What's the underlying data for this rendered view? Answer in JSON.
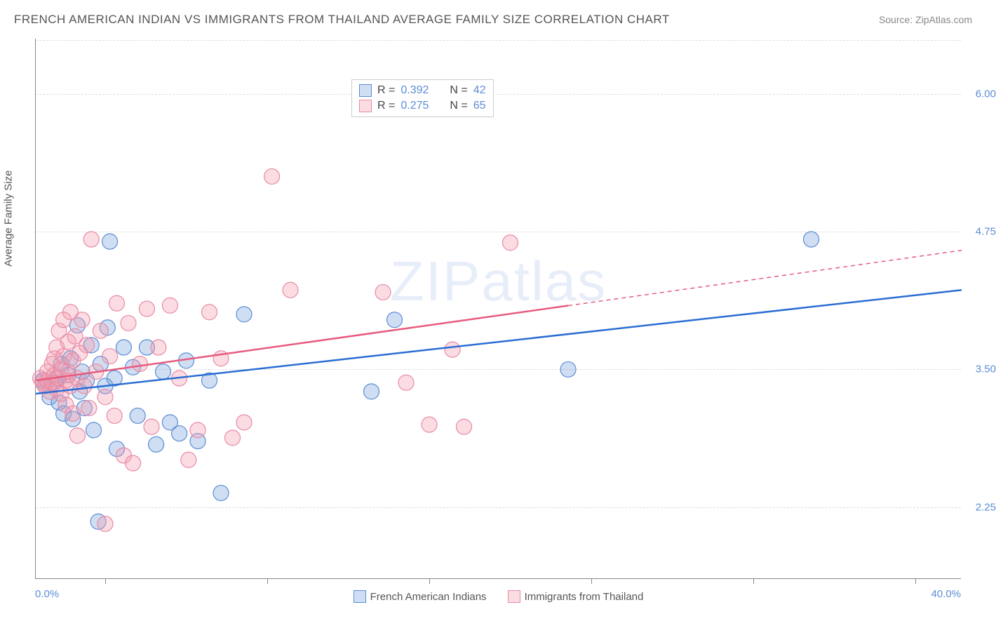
{
  "title": "FRENCH AMERICAN INDIAN VS IMMIGRANTS FROM THAILAND AVERAGE FAMILY SIZE CORRELATION CHART",
  "source_label": "Source: ",
  "source_value": "ZipAtlas.com",
  "ylabel": "Average Family Size",
  "watermark": "ZIPatlas",
  "chart": {
    "type": "scatter",
    "xlim": [
      0,
      40
    ],
    "ylim": [
      1.6,
      6.5
    ],
    "x_axis_label_left": "0.0%",
    "x_axis_label_right": "40.0%",
    "y_ticks": [
      2.25,
      3.5,
      4.75,
      6.0
    ],
    "y_tick_labels": [
      "2.25",
      "3.50",
      "4.75",
      "6.00"
    ],
    "x_tick_positions": [
      3.0,
      10.0,
      17.0,
      24.0,
      31.0,
      38.0
    ],
    "grid_color": "#dddddd",
    "axis_color": "#888888",
    "tick_label_color": "#5b8dd6",
    "background_color": "#ffffff"
  },
  "series": [
    {
      "key": "french_american_indians",
      "label": "French American Indians",
      "fill_color": "rgba(118, 160, 219, 0.35)",
      "stroke_color": "#5b8dd6",
      "line_color": "#2a6dd4",
      "marker_radius": 11,
      "r_label": "R = ",
      "r_value": "0.392",
      "n_label": "N = ",
      "n_value": "42",
      "trend": {
        "x1": 0,
        "y1": 3.28,
        "x2": 40,
        "y2": 4.22,
        "solid_until_x": 40
      },
      "points": [
        [
          0.3,
          3.4
        ],
        [
          0.4,
          3.35
        ],
        [
          0.6,
          3.25
        ],
        [
          0.8,
          3.38
        ],
        [
          0.9,
          3.42
        ],
        [
          1.0,
          3.2
        ],
        [
          1.1,
          3.55
        ],
        [
          1.2,
          3.1
        ],
        [
          1.4,
          3.45
        ],
        [
          1.5,
          3.6
        ],
        [
          1.6,
          3.05
        ],
        [
          1.8,
          3.9
        ],
        [
          1.9,
          3.3
        ],
        [
          2.0,
          3.48
        ],
        [
          2.1,
          3.15
        ],
        [
          2.2,
          3.4
        ],
        [
          2.4,
          3.72
        ],
        [
          2.5,
          2.95
        ],
        [
          2.7,
          2.12
        ],
        [
          2.8,
          3.55
        ],
        [
          3.0,
          3.35
        ],
        [
          3.1,
          3.88
        ],
        [
          3.2,
          4.66
        ],
        [
          3.4,
          3.42
        ],
        [
          3.5,
          2.78
        ],
        [
          3.8,
          3.7
        ],
        [
          4.2,
          3.52
        ],
        [
          4.4,
          3.08
        ],
        [
          4.8,
          3.7
        ],
        [
          5.2,
          2.82
        ],
        [
          5.5,
          3.48
        ],
        [
          5.8,
          3.02
        ],
        [
          6.2,
          2.92
        ],
        [
          6.5,
          3.58
        ],
        [
          7.0,
          2.85
        ],
        [
          7.5,
          3.4
        ],
        [
          8.0,
          2.38
        ],
        [
          9.0,
          4.0
        ],
        [
          14.5,
          3.3
        ],
        [
          15.5,
          3.95
        ],
        [
          23.0,
          3.5
        ],
        [
          33.5,
          4.68
        ]
      ]
    },
    {
      "key": "immigrants_from_thailand",
      "label": "Immigrants from Thailand",
      "fill_color": "rgba(244, 154, 175, 0.35)",
      "stroke_color": "#e88ba4",
      "line_color": "#e85a7e",
      "marker_radius": 11,
      "r_label": "R = ",
      "r_value": "0.275",
      "n_label": "N = ",
      "n_value": "65",
      "trend": {
        "x1": 0,
        "y1": 3.4,
        "x2": 40,
        "y2": 4.58,
        "solid_until_x": 23
      },
      "points": [
        [
          0.2,
          3.42
        ],
        [
          0.3,
          3.38
        ],
        [
          0.4,
          3.35
        ],
        [
          0.5,
          3.4
        ],
        [
          0.5,
          3.48
        ],
        [
          0.6,
          3.3
        ],
        [
          0.7,
          3.55
        ],
        [
          0.7,
          3.38
        ],
        [
          0.8,
          3.45
        ],
        [
          0.8,
          3.6
        ],
        [
          0.9,
          3.32
        ],
        [
          0.9,
          3.7
        ],
        [
          1.0,
          3.42
        ],
        [
          1.0,
          3.85
        ],
        [
          1.1,
          3.28
        ],
        [
          1.1,
          3.5
        ],
        [
          1.2,
          3.62
        ],
        [
          1.2,
          3.95
        ],
        [
          1.3,
          3.4
        ],
        [
          1.3,
          3.18
        ],
        [
          1.4,
          3.75
        ],
        [
          1.4,
          3.48
        ],
        [
          1.5,
          3.35
        ],
        [
          1.5,
          4.02
        ],
        [
          1.6,
          3.58
        ],
        [
          1.6,
          3.1
        ],
        [
          1.7,
          3.8
        ],
        [
          1.8,
          3.42
        ],
        [
          1.8,
          2.9
        ],
        [
          1.9,
          3.65
        ],
        [
          2.0,
          3.95
        ],
        [
          2.1,
          3.35
        ],
        [
          2.2,
          3.72
        ],
        [
          2.3,
          3.15
        ],
        [
          2.4,
          4.68
        ],
        [
          2.6,
          3.48
        ],
        [
          2.8,
          3.85
        ],
        [
          3.0,
          3.25
        ],
        [
          3.0,
          2.1
        ],
        [
          3.2,
          3.62
        ],
        [
          3.4,
          3.08
        ],
        [
          3.5,
          4.1
        ],
        [
          3.8,
          2.72
        ],
        [
          4.0,
          3.92
        ],
        [
          4.2,
          2.65
        ],
        [
          4.5,
          3.55
        ],
        [
          4.8,
          4.05
        ],
        [
          5.0,
          2.98
        ],
        [
          5.3,
          3.7
        ],
        [
          5.8,
          4.08
        ],
        [
          6.2,
          3.42
        ],
        [
          6.6,
          2.68
        ],
        [
          7.0,
          2.95
        ],
        [
          7.5,
          4.02
        ],
        [
          8.0,
          3.6
        ],
        [
          8.5,
          2.88
        ],
        [
          9.0,
          3.02
        ],
        [
          10.2,
          5.25
        ],
        [
          11.0,
          4.22
        ],
        [
          15.0,
          4.2
        ],
        [
          16.0,
          3.38
        ],
        [
          17.0,
          3.0
        ],
        [
          18.0,
          3.68
        ],
        [
          18.5,
          2.98
        ],
        [
          20.5,
          4.65
        ]
      ]
    }
  ],
  "colors": {
    "title_text": "#555555",
    "source_text": "#888888",
    "watermark": "rgba(91,141,214,0.15)"
  }
}
